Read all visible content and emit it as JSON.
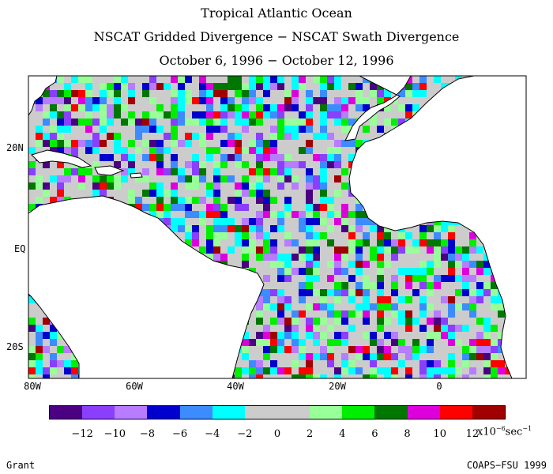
{
  "title_lines": [
    "Tropical Atlantic Ocean",
    "NSCAT Gridded Divergence − NSCAT Swath Divergence",
    "October 6, 1996 − October 12, 1996"
  ],
  "lat_labels": [
    "20N",
    "EQ",
    "20S"
  ],
  "lon_labels": [
    "80W",
    "60W",
    "40W",
    "20W",
    "0"
  ],
  "colorbar": {
    "colors": [
      "#4b0082",
      "#8a3ffc",
      "#b77cff",
      "#0000cd",
      "#3c8cff",
      "#00ffff",
      "#cccccc",
      "#cccccc",
      "#99ff99",
      "#00ee00",
      "#007700",
      "#dd00dd",
      "#ff0000",
      "#a00000"
    ],
    "tick_labels": [
      "−12",
      "−10",
      "−8",
      "−6",
      "−4",
      "−2",
      "0",
      "2",
      "4",
      "6",
      "8",
      "10",
      "12"
    ],
    "unit_base": "x10",
    "unit_exp1": "−6",
    "unit_mid": "sec",
    "unit_exp2": "−1"
  },
  "footer": {
    "left": "Grant",
    "right": "COAPS−FSU 1999"
  },
  "colors": {
    "land": "#ffffff",
    "coast": "#000000",
    "background": "#ffffff"
  }
}
